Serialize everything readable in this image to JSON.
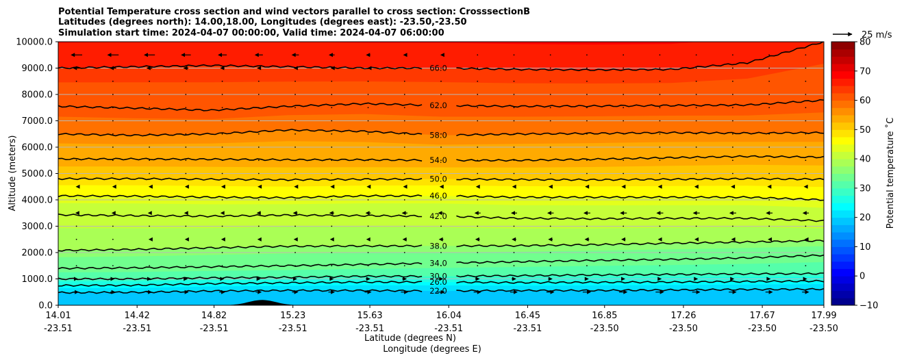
{
  "chart_data": {
    "type": "heatmap",
    "title_lines": [
      "Potential Temperature cross section and wind vectors parallel to cross section: CrosssectionB",
      "Latitudes (degrees north): 14.00,18.00, Longitudes (degrees east): -23.50,-23.50",
      "Simulation start time: 2024-04-07 00:00:00, Valid time: 2024-04-07 06:00:00"
    ],
    "xlabel_lat": "Latitude (degrees N)",
    "xlabel_lon": "Longitude (degrees E)",
    "ylabel": "Altitude (meters)",
    "xlim": [
      14.01,
      17.99
    ],
    "ylim": [
      0,
      10000
    ],
    "x_ticks": [
      {
        "lat": "14.01",
        "lon": "-23.51"
      },
      {
        "lat": "14.42",
        "lon": "-23.51"
      },
      {
        "lat": "14.82",
        "lon": "-23.51"
      },
      {
        "lat": "15.23",
        "lon": "-23.51"
      },
      {
        "lat": "15.63",
        "lon": "-23.51"
      },
      {
        "lat": "16.04",
        "lon": "-23.51"
      },
      {
        "lat": "16.45",
        "lon": "-23.51"
      },
      {
        "lat": "16.85",
        "lon": "-23.50"
      },
      {
        "lat": "17.26",
        "lon": "-23.50"
      },
      {
        "lat": "17.67",
        "lon": "-23.50"
      },
      {
        "lat": "17.99",
        "lon": "-23.50"
      }
    ],
    "y_ticks": [
      "0.0",
      "1000.0",
      "2000.0",
      "3000.0",
      "4000.0",
      "5000.0",
      "6000.0",
      "7000.0",
      "8000.0",
      "9000.0",
      "10000.0"
    ],
    "grid": "horizontal",
    "colorbar": {
      "label": "Potential temperature ˚C",
      "min": -10,
      "max": 80,
      "step": 2.5,
      "ticks": [
        "−10",
        "0",
        "10",
        "20",
        "30",
        "40",
        "50",
        "60",
        "70",
        "80"
      ],
      "colormap": "jet"
    },
    "quiver_key": {
      "label": "25 m/s",
      "speed": 25
    },
    "contours": [
      {
        "label": "22.0",
        "level": 22,
        "heights": [
          480,
          490,
          540,
          560,
          560,
          540,
          560,
          560,
          580,
          600,
          610
        ]
      },
      {
        "label": "26.0",
        "level": 26,
        "heights": [
          750,
          760,
          820,
          850,
          880,
          880,
          860,
          870,
          880,
          900,
          920
        ]
      },
      {
        "label": "30.0",
        "level": 30,
        "heights": [
          1000,
          1000,
          1040,
          1060,
          1100,
          1100,
          1120,
          1150,
          1170,
          1190,
          1200
        ]
      },
      {
        "label": "34.0",
        "level": 34,
        "heights": [
          1400,
          1420,
          1460,
          1500,
          1550,
          1600,
          1650,
          1700,
          1740,
          1800,
          1900
        ]
      },
      {
        "label": "38.0",
        "level": 38,
        "heights": [
          2080,
          2120,
          2180,
          2240,
          2250,
          2250,
          2260,
          2300,
          2350,
          2400,
          2450
        ]
      },
      {
        "label": "42.0",
        "level": 42,
        "heights": [
          3430,
          3400,
          3380,
          3420,
          3400,
          3380,
          3300,
          3280,
          3300,
          3300,
          3200
        ]
      },
      {
        "label": "46.0",
        "level": 46,
        "heights": [
          4150,
          4140,
          4100,
          4080,
          4150,
          4150,
          4100,
          4100,
          4100,
          4100,
          4000
        ]
      },
      {
        "label": "50.0",
        "level": 50,
        "heights": [
          4800,
          4800,
          4780,
          4760,
          4780,
          4790,
          4770,
          4760,
          4780,
          4800,
          4780
        ]
      },
      {
        "label": "54.0",
        "level": 54,
        "heights": [
          5550,
          5550,
          5540,
          5520,
          5520,
          5500,
          5500,
          5540,
          5600,
          5650,
          5620
        ]
      },
      {
        "label": "58.0",
        "level": 58,
        "heights": [
          6500,
          6450,
          6500,
          6650,
          6600,
          6450,
          6500,
          6520,
          6550,
          6530,
          6550
        ]
      },
      {
        "label": "62.0",
        "level": 62,
        "heights": [
          7550,
          7480,
          7400,
          7550,
          7650,
          7580,
          7550,
          7560,
          7580,
          7600,
          7780
        ]
      },
      {
        "label": "66.0",
        "level": 66,
        "heights": [
          9000,
          9050,
          9100,
          9050,
          9000,
          9000,
          8950,
          8930,
          8950,
          9200,
          10000
        ]
      }
    ],
    "wind_vectors": [
      {
        "y": 9500,
        "u": [
          -15,
          -15,
          -12,
          -10,
          -6,
          -2,
          0,
          0,
          0,
          0,
          0
        ]
      },
      {
        "y": 9000,
        "u": [
          -10,
          -8,
          -6,
          -4,
          -2,
          0,
          0,
          0,
          0,
          0,
          0
        ]
      },
      {
        "y": 4500,
        "u": [
          -2,
          -2,
          -3,
          -3,
          -4,
          -4,
          -5,
          -5,
          -5,
          -5,
          -5
        ]
      },
      {
        "y": 3500,
        "u": [
          -3,
          -4,
          -5,
          -6,
          -7,
          -8,
          -8,
          -9,
          -9,
          -9,
          -8
        ]
      },
      {
        "y": 2500,
        "u": [
          0,
          -2,
          -3,
          -4,
          -5,
          -6,
          -6,
          -6,
          -5,
          -4,
          -3
        ]
      },
      {
        "y": 1000,
        "u": [
          4,
          5,
          5,
          5,
          6,
          6,
          6,
          5,
          5,
          4,
          4
        ]
      },
      {
        "y": 500,
        "u": [
          6,
          7,
          8,
          8,
          9,
          10,
          10,
          11,
          11,
          10,
          9
        ]
      }
    ],
    "terrain": {
      "peak_lat": 15.07,
      "peak_height": 200,
      "half_width": 0.1
    }
  }
}
